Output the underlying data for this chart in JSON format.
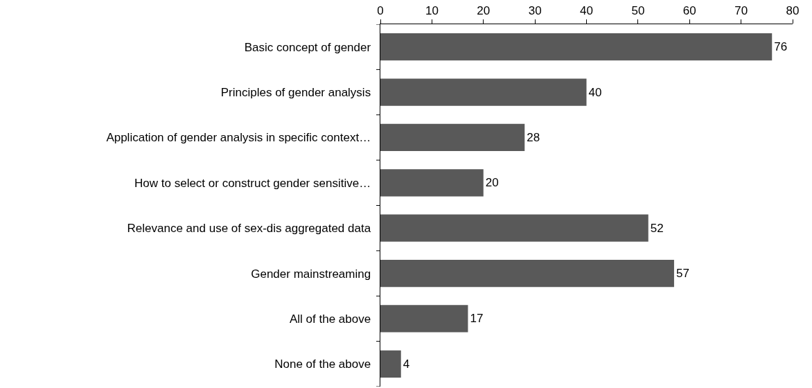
{
  "chart_data": {
    "type": "bar",
    "orientation": "horizontal",
    "categories": [
      "Basic concept of gender",
      "Principles of gender analysis",
      "Application of gender analysis in specific context…",
      "How to select or construct gender sensitive…",
      "Relevance and use of sex-dis aggregated data",
      "Gender mainstreaming",
      "All of the above",
      "None of the above"
    ],
    "values": [
      76,
      40,
      28,
      20,
      52,
      57,
      17,
      4
    ],
    "color": "#595959",
    "xlim": [
      0,
      80
    ],
    "xticks": [
      0,
      10,
      20,
      30,
      40,
      50,
      60,
      70,
      80
    ],
    "data_labels": true,
    "grid": false
  }
}
